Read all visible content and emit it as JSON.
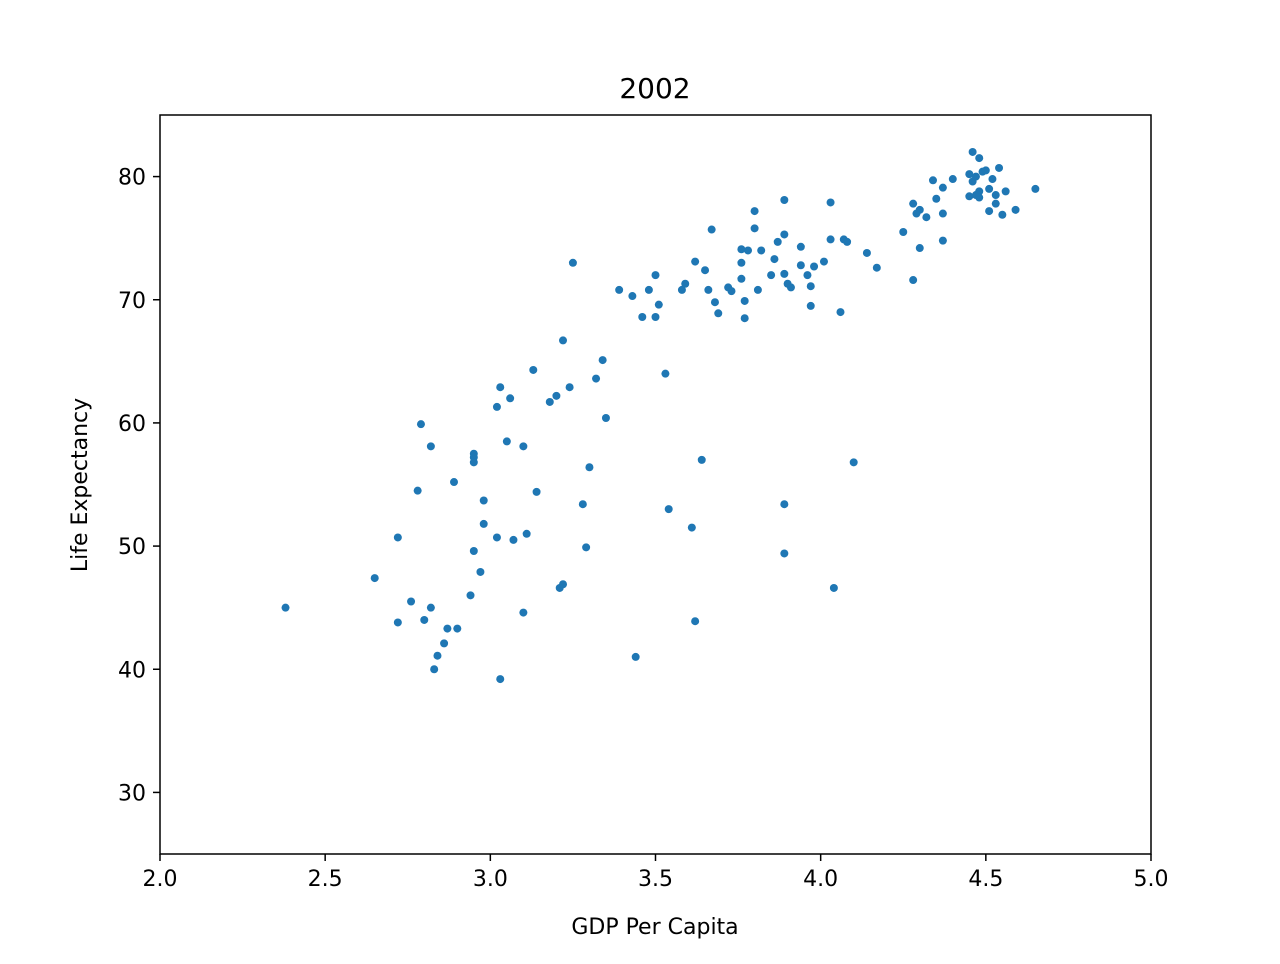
{
  "chart_data": {
    "type": "scatter",
    "title": "2002",
    "xlabel": "GDP Per Capita",
    "ylabel": "Life Expectancy",
    "xlim": [
      2.0,
      5.0
    ],
    "ylim": [
      25,
      85
    ],
    "xticks": [
      2.0,
      2.5,
      3.0,
      3.5,
      4.0,
      4.5,
      5.0
    ],
    "xtick_labels": [
      "2.0",
      "2.5",
      "3.0",
      "3.5",
      "4.0",
      "4.5",
      "5.0"
    ],
    "yticks": [
      30,
      40,
      50,
      60,
      70,
      80
    ],
    "ytick_labels": [
      "30",
      "40",
      "50",
      "60",
      "70",
      "80"
    ],
    "grid": false,
    "marker_color": "#1f77b4",
    "points": [
      {
        "x": 2.38,
        "y": 45.0
      },
      {
        "x": 2.65,
        "y": 47.4
      },
      {
        "x": 2.72,
        "y": 50.7
      },
      {
        "x": 2.72,
        "y": 43.8
      },
      {
        "x": 2.76,
        "y": 45.5
      },
      {
        "x": 2.78,
        "y": 54.5
      },
      {
        "x": 2.79,
        "y": 59.9
      },
      {
        "x": 2.8,
        "y": 44.0
      },
      {
        "x": 2.82,
        "y": 58.1
      },
      {
        "x": 2.82,
        "y": 45.0
      },
      {
        "x": 2.83,
        "y": 40.0
      },
      {
        "x": 2.84,
        "y": 41.1
      },
      {
        "x": 2.86,
        "y": 42.1
      },
      {
        "x": 2.87,
        "y": 43.3
      },
      {
        "x": 2.89,
        "y": 55.2
      },
      {
        "x": 2.9,
        "y": 43.3
      },
      {
        "x": 2.95,
        "y": 57.5
      },
      {
        "x": 2.95,
        "y": 57.2
      },
      {
        "x": 2.95,
        "y": 56.8
      },
      {
        "x": 2.95,
        "y": 49.6
      },
      {
        "x": 2.94,
        "y": 46.0
      },
      {
        "x": 2.97,
        "y": 47.9
      },
      {
        "x": 2.98,
        "y": 53.7
      },
      {
        "x": 2.98,
        "y": 51.8
      },
      {
        "x": 3.02,
        "y": 50.7
      },
      {
        "x": 3.02,
        "y": 61.3
      },
      {
        "x": 3.03,
        "y": 62.9
      },
      {
        "x": 3.03,
        "y": 39.2
      },
      {
        "x": 3.05,
        "y": 58.5
      },
      {
        "x": 3.06,
        "y": 62.0
      },
      {
        "x": 3.07,
        "y": 50.5
      },
      {
        "x": 3.1,
        "y": 58.1
      },
      {
        "x": 3.11,
        "y": 51.0
      },
      {
        "x": 3.1,
        "y": 44.6
      },
      {
        "x": 3.13,
        "y": 64.3
      },
      {
        "x": 3.14,
        "y": 54.4
      },
      {
        "x": 3.18,
        "y": 61.7
      },
      {
        "x": 3.2,
        "y": 62.2
      },
      {
        "x": 3.21,
        "y": 46.6
      },
      {
        "x": 3.22,
        "y": 46.9
      },
      {
        "x": 3.22,
        "y": 66.7
      },
      {
        "x": 3.24,
        "y": 62.9
      },
      {
        "x": 3.25,
        "y": 73.0
      },
      {
        "x": 3.28,
        "y": 53.4
      },
      {
        "x": 3.29,
        "y": 49.9
      },
      {
        "x": 3.3,
        "y": 56.4
      },
      {
        "x": 3.32,
        "y": 63.6
      },
      {
        "x": 3.34,
        "y": 65.1
      },
      {
        "x": 3.35,
        "y": 60.4
      },
      {
        "x": 3.39,
        "y": 70.8
      },
      {
        "x": 3.43,
        "y": 70.3
      },
      {
        "x": 3.44,
        "y": 41.0
      },
      {
        "x": 3.46,
        "y": 68.6
      },
      {
        "x": 3.48,
        "y": 70.8
      },
      {
        "x": 3.5,
        "y": 72.0
      },
      {
        "x": 3.5,
        "y": 68.6
      },
      {
        "x": 3.51,
        "y": 69.6
      },
      {
        "x": 3.53,
        "y": 64.0
      },
      {
        "x": 3.54,
        "y": 53.0
      },
      {
        "x": 3.58,
        "y": 70.8
      },
      {
        "x": 3.59,
        "y": 71.3
      },
      {
        "x": 3.61,
        "y": 51.5
      },
      {
        "x": 3.62,
        "y": 43.9
      },
      {
        "x": 3.62,
        "y": 73.1
      },
      {
        "x": 3.64,
        "y": 57.0
      },
      {
        "x": 3.65,
        "y": 72.4
      },
      {
        "x": 3.66,
        "y": 70.8
      },
      {
        "x": 3.67,
        "y": 75.7
      },
      {
        "x": 3.68,
        "y": 69.8
      },
      {
        "x": 3.69,
        "y": 68.9
      },
      {
        "x": 3.72,
        "y": 71.0
      },
      {
        "x": 3.73,
        "y": 70.7
      },
      {
        "x": 3.76,
        "y": 74.1
      },
      {
        "x": 3.76,
        "y": 73.0
      },
      {
        "x": 3.76,
        "y": 71.7
      },
      {
        "x": 3.77,
        "y": 69.9
      },
      {
        "x": 3.77,
        "y": 68.5
      },
      {
        "x": 3.78,
        "y": 74.0
      },
      {
        "x": 3.8,
        "y": 77.2
      },
      {
        "x": 3.8,
        "y": 75.8
      },
      {
        "x": 3.81,
        "y": 70.8
      },
      {
        "x": 3.82,
        "y": 74.0
      },
      {
        "x": 3.85,
        "y": 72.0
      },
      {
        "x": 3.86,
        "y": 73.3
      },
      {
        "x": 3.87,
        "y": 74.7
      },
      {
        "x": 3.89,
        "y": 78.1
      },
      {
        "x": 3.89,
        "y": 75.3
      },
      {
        "x": 3.89,
        "y": 72.1
      },
      {
        "x": 3.89,
        "y": 53.4
      },
      {
        "x": 3.89,
        "y": 49.4
      },
      {
        "x": 3.9,
        "y": 71.3
      },
      {
        "x": 3.91,
        "y": 71.0
      },
      {
        "x": 3.94,
        "y": 72.8
      },
      {
        "x": 3.94,
        "y": 74.3
      },
      {
        "x": 3.96,
        "y": 72.0
      },
      {
        "x": 3.97,
        "y": 71.1
      },
      {
        "x": 3.97,
        "y": 69.5
      },
      {
        "x": 3.98,
        "y": 72.7
      },
      {
        "x": 4.01,
        "y": 73.1
      },
      {
        "x": 4.03,
        "y": 77.9
      },
      {
        "x": 4.03,
        "y": 74.9
      },
      {
        "x": 4.04,
        "y": 46.6
      },
      {
        "x": 4.06,
        "y": 69.0
      },
      {
        "x": 4.07,
        "y": 74.9
      },
      {
        "x": 4.08,
        "y": 74.7
      },
      {
        "x": 4.1,
        "y": 56.8
      },
      {
        "x": 4.14,
        "y": 73.8
      },
      {
        "x": 4.17,
        "y": 72.6
      },
      {
        "x": 4.25,
        "y": 75.5
      },
      {
        "x": 4.28,
        "y": 77.8
      },
      {
        "x": 4.28,
        "y": 71.6
      },
      {
        "x": 4.29,
        "y": 77.0
      },
      {
        "x": 4.3,
        "y": 77.3
      },
      {
        "x": 4.3,
        "y": 74.2
      },
      {
        "x": 4.32,
        "y": 76.7
      },
      {
        "x": 4.34,
        "y": 79.7
      },
      {
        "x": 4.35,
        "y": 78.2
      },
      {
        "x": 4.37,
        "y": 79.1
      },
      {
        "x": 4.37,
        "y": 77.0
      },
      {
        "x": 4.37,
        "y": 74.8
      },
      {
        "x": 4.4,
        "y": 79.8
      },
      {
        "x": 4.45,
        "y": 80.2
      },
      {
        "x": 4.45,
        "y": 78.4
      },
      {
        "x": 4.46,
        "y": 82.0
      },
      {
        "x": 4.46,
        "y": 79.6
      },
      {
        "x": 4.47,
        "y": 80.0
      },
      {
        "x": 4.47,
        "y": 78.5
      },
      {
        "x": 4.48,
        "y": 81.5
      },
      {
        "x": 4.48,
        "y": 78.8
      },
      {
        "x": 4.48,
        "y": 78.3
      },
      {
        "x": 4.49,
        "y": 80.4
      },
      {
        "x": 4.5,
        "y": 80.5
      },
      {
        "x": 4.51,
        "y": 79.0
      },
      {
        "x": 4.51,
        "y": 77.2
      },
      {
        "x": 4.52,
        "y": 79.8
      },
      {
        "x": 4.53,
        "y": 78.5
      },
      {
        "x": 4.53,
        "y": 77.8
      },
      {
        "x": 4.54,
        "y": 80.7
      },
      {
        "x": 4.55,
        "y": 76.9
      },
      {
        "x": 4.56,
        "y": 78.8
      },
      {
        "x": 4.59,
        "y": 77.3
      },
      {
        "x": 4.65,
        "y": 79.0
      }
    ]
  }
}
